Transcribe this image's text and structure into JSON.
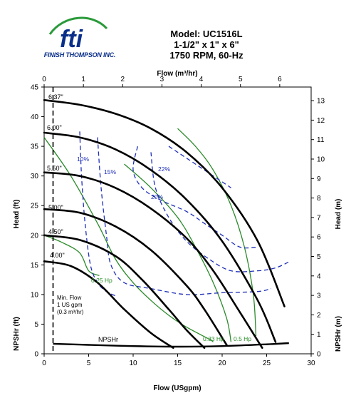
{
  "brand": {
    "logo_text": "fti",
    "company": "FINISH THOMPSON INC.",
    "colors": {
      "navy": "#0a2f8a",
      "green": "#2a9a3a"
    }
  },
  "header": {
    "model": "Model: UC1516L",
    "size": "1-1/2\" x 1\" x 6\"",
    "speed": "1750 RPM, 60-Hz"
  },
  "chart_data": {
    "type": "line",
    "title": "Model: UC1516L",
    "xlabel": "Flow (USgpm)",
    "x2label": "Flow (m³/hr)",
    "ylabel": "Head (ft)",
    "ylabel_lower": "NPSHr (ft)",
    "y2label": "Head (m)",
    "y2label_lower": "NPSHr (m)",
    "xlim": [
      0,
      30
    ],
    "ylim": [
      0,
      45
    ],
    "x2lim": [
      0,
      6.8
    ],
    "y2lim": [
      0,
      13.7
    ],
    "x_ticks": [
      0,
      5,
      10,
      15,
      20,
      25,
      30
    ],
    "y_ticks": [
      0,
      5,
      10,
      15,
      20,
      25,
      30,
      35,
      40,
      45
    ],
    "x2_ticks": [
      0,
      1,
      2,
      3,
      4,
      5,
      6
    ],
    "y2_ticks": [
      0,
      1,
      2,
      3,
      4,
      5,
      6,
      7,
      8,
      9,
      10,
      11,
      12,
      13
    ],
    "grid": false,
    "colors": {
      "impeller": "#000000",
      "efficiency": "#1f2fb8",
      "power": "#2a8a2a",
      "minflow": "#000000"
    },
    "impeller_curves": [
      {
        "name": "6.37\"",
        "points": [
          [
            0,
            42.8
          ],
          [
            4,
            42
          ],
          [
            8,
            40.5
          ],
          [
            12,
            38
          ],
          [
            16,
            34
          ],
          [
            20,
            28
          ],
          [
            24,
            19
          ],
          [
            27,
            8
          ]
        ]
      },
      {
        "name": "6.00\"",
        "points": [
          [
            0,
            37.3
          ],
          [
            4,
            36.5
          ],
          [
            8,
            34.5
          ],
          [
            12,
            31
          ],
          [
            16,
            26
          ],
          [
            20,
            19
          ],
          [
            24,
            9
          ],
          [
            26,
            2
          ]
        ]
      },
      {
        "name": "5.50\"",
        "points": [
          [
            0,
            30.6
          ],
          [
            4,
            30
          ],
          [
            8,
            28
          ],
          [
            12,
            24.5
          ],
          [
            16,
            19.5
          ],
          [
            19,
            14
          ],
          [
            22,
            7
          ],
          [
            24.5,
            1
          ]
        ]
      },
      {
        "name": "5.00\"",
        "points": [
          [
            0,
            24.4
          ],
          [
            4,
            23.8
          ],
          [
            8,
            21.5
          ],
          [
            12,
            17.5
          ],
          [
            16,
            11.5
          ],
          [
            18,
            7.5
          ],
          [
            20.5,
            1.5
          ]
        ]
      },
      {
        "name": "4.50\"",
        "points": [
          [
            0,
            20
          ],
          [
            4,
            19.2
          ],
          [
            8,
            16.5
          ],
          [
            11,
            12.5
          ],
          [
            14,
            7.5
          ],
          [
            16,
            4
          ],
          [
            18,
            1
          ]
        ]
      },
      {
        "name": "4.00\"",
        "points": [
          [
            0,
            15.6
          ],
          [
            3,
            14.8
          ],
          [
            6,
            12
          ],
          [
            9,
            7.5
          ],
          [
            12,
            3.5
          ],
          [
            14.5,
            1
          ]
        ]
      }
    ],
    "efficiency_curves": [
      {
        "name": "10%",
        "points": [
          [
            4,
            37.5
          ],
          [
            4.2,
            30
          ],
          [
            4.6,
            22
          ],
          [
            5.2,
            15
          ],
          [
            6,
            12
          ],
          [
            7,
            10.5
          ],
          [
            8,
            9.8
          ]
        ]
      },
      {
        "name": "15%",
        "points": [
          [
            6,
            36.5
          ],
          [
            6.4,
            28
          ],
          [
            7,
            20
          ],
          [
            7.5,
            15
          ],
          [
            9,
            12
          ],
          [
            12,
            11
          ],
          [
            16,
            10
          ],
          [
            20,
            10.3
          ],
          [
            24,
            10.5
          ],
          [
            25.5,
            11
          ]
        ]
      },
      {
        "name": "20%",
        "points": [
          [
            10.5,
            35
          ],
          [
            10,
            31
          ],
          [
            11,
            28
          ],
          [
            13,
            26
          ],
          [
            16,
            24
          ],
          [
            18,
            22
          ],
          [
            20,
            20
          ],
          [
            22,
            18
          ],
          [
            24,
            18
          ]
        ]
      },
      {
        "name": "20% lower",
        "points": [
          [
            12,
            34
          ],
          [
            12.5,
            28
          ],
          [
            14,
            23
          ],
          [
            16,
            19
          ],
          [
            18.5,
            16
          ],
          [
            21,
            14
          ],
          [
            24,
            14
          ],
          [
            26,
            14.5
          ],
          [
            27.5,
            15.5
          ]
        ]
      },
      {
        "name": "22%",
        "points": [
          [
            14,
            35
          ],
          [
            15,
            34
          ],
          [
            17,
            32
          ],
          [
            19,
            30
          ],
          [
            20,
            29
          ],
          [
            21,
            28
          ]
        ]
      }
    ],
    "power_curves": [
      {
        "name": "0.25 Hp",
        "points": [
          [
            0,
            36.5
          ],
          [
            3,
            30
          ],
          [
            6,
            22
          ],
          [
            8,
            16
          ],
          [
            10,
            12
          ],
          [
            12,
            9
          ],
          [
            14,
            6.5
          ],
          [
            16,
            4.5
          ],
          [
            18.5,
            2.5
          ],
          [
            19,
            2
          ]
        ]
      },
      {
        "name": "0.33 Hp",
        "points": [
          [
            9,
            32
          ],
          [
            12,
            28
          ],
          [
            15,
            23
          ],
          [
            17,
            18
          ],
          [
            19,
            12
          ],
          [
            20.5,
            6
          ],
          [
            21,
            2
          ]
        ]
      },
      {
        "name": "0.5 Hp",
        "points": [
          [
            15,
            38
          ],
          [
            17,
            35
          ],
          [
            19,
            31
          ],
          [
            21,
            25
          ],
          [
            22.5,
            18
          ],
          [
            23.5,
            10
          ],
          [
            23.8,
            3
          ]
        ]
      },
      {
        "name": "0.25 Hp upper",
        "points": [
          [
            0,
            20
          ],
          [
            2,
            18.8
          ],
          [
            4,
            17
          ],
          [
            5,
            14
          ],
          [
            6.2,
            13.2
          ]
        ]
      }
    ],
    "npshr": {
      "name": "NPSHr",
      "points": [
        [
          1,
          1.7
        ],
        [
          5,
          1.5
        ],
        [
          10,
          1.3
        ],
        [
          15,
          1.2
        ],
        [
          20,
          1.3
        ],
        [
          25,
          1.6
        ],
        [
          27.5,
          1.8
        ]
      ]
    },
    "min_flow": {
      "x": 1,
      "label": "Min. Flow",
      "label2": "1 US gpm",
      "label3": "(0.3 m³/hr)"
    },
    "labels": {
      "eff_10": "10%",
      "eff_15": "15%",
      "eff_20": "20%",
      "eff_22": "22%",
      "hp_025": "0.25 Hp",
      "hp_033": "0.33 Hp",
      "hp_05": "0.5 Hp",
      "npshr": "NPSHr",
      "imp_637": "6.37\"",
      "imp_600": "6.00\"",
      "imp_550": "5.50\"",
      "imp_500": "5.00\"",
      "imp_450": "4.50\"",
      "imp_400": "4.00\""
    }
  }
}
